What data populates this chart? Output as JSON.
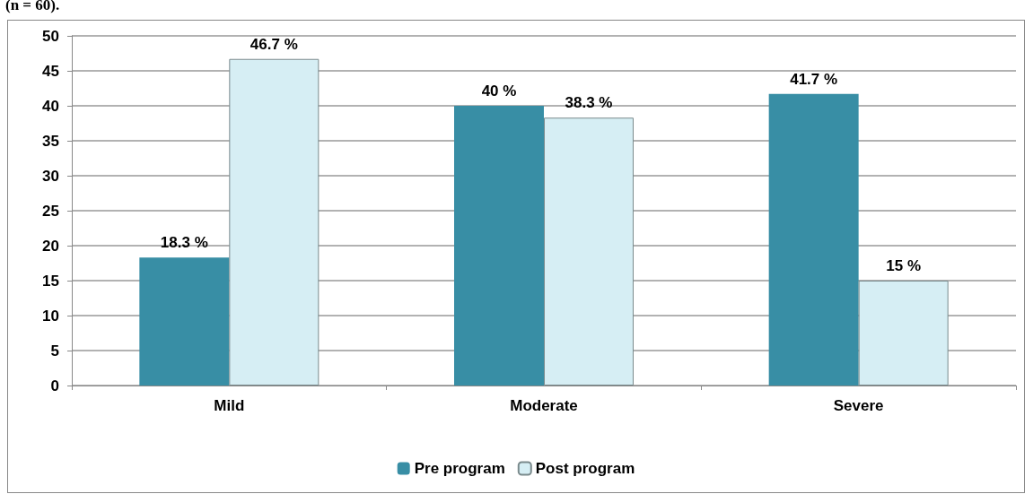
{
  "chart_data": {
    "type": "bar",
    "annotations": [
      "(n = 60)."
    ],
    "categories": [
      "Mild",
      "Moderate",
      "Severe"
    ],
    "series": [
      {
        "name": "Pre program",
        "color": "#388ea5",
        "values": [
          18.3,
          40,
          41.7
        ],
        "value_labels": [
          "18.3 %",
          "40 %",
          "41.7 %"
        ]
      },
      {
        "name": "Post program",
        "color": "#d6eef4",
        "values": [
          46.7,
          38.3,
          15
        ],
        "value_labels": [
          "46.7 %",
          "38.3 %",
          "15 %"
        ]
      }
    ],
    "ylim": [
      0,
      50
    ],
    "yticks": [
      0,
      5,
      10,
      15,
      20,
      25,
      30,
      35,
      40,
      45,
      50
    ],
    "grid": "y",
    "legend": "bottom"
  }
}
